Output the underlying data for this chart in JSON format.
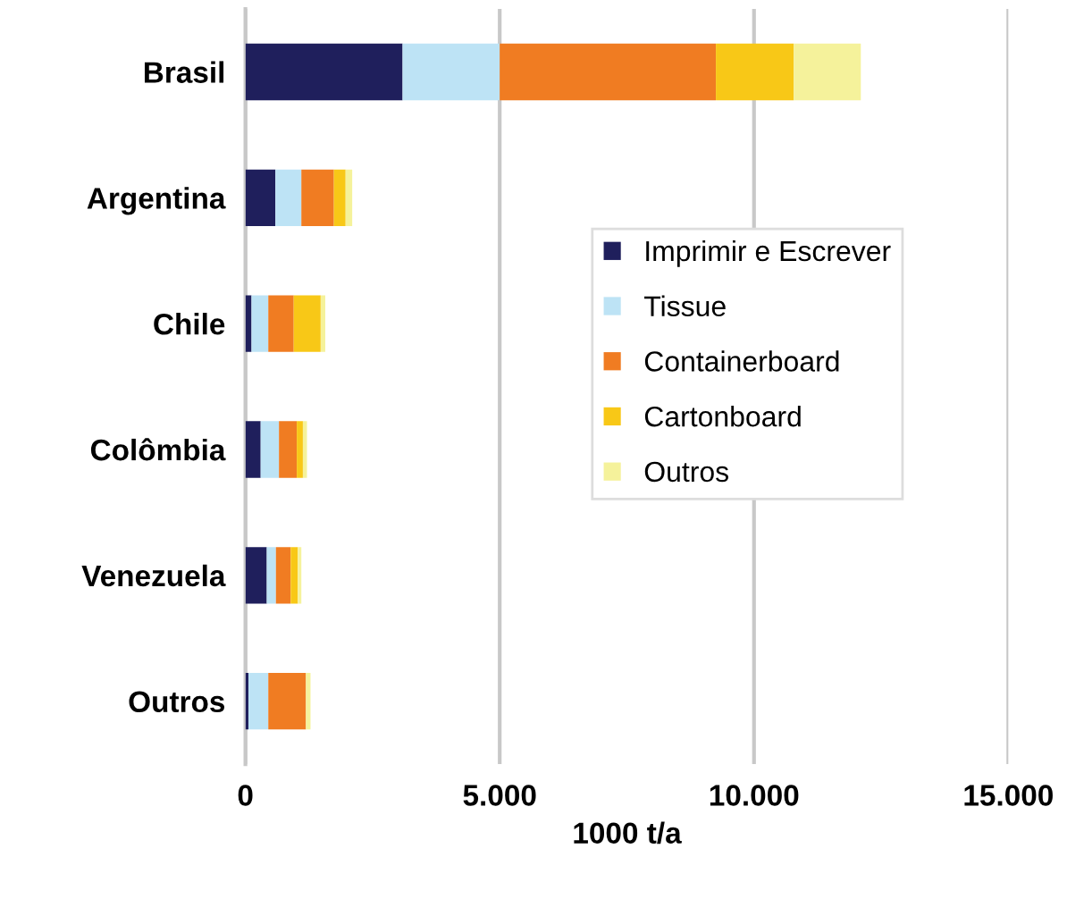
{
  "chart_data": {
    "type": "bar",
    "orientation": "horizontal",
    "stacked": true,
    "xlabel": "1000 t/a",
    "categories": [
      "Brasil",
      "Argentina",
      "Chile",
      "Colômbia",
      "Venezuela",
      "Outros"
    ],
    "series": [
      {
        "name": "Imprimir e Escrever",
        "color": "#1f1f5c",
        "values": [
          3090,
          590,
          120,
          300,
          420,
          60
        ]
      },
      {
        "name": "Tissue",
        "color": "#bde3f5",
        "values": [
          1910,
          510,
          330,
          360,
          180,
          390
        ]
      },
      {
        "name": "Containerboard",
        "color": "#f07c22",
        "values": [
          4250,
          640,
          500,
          350,
          290,
          740
        ]
      },
      {
        "name": "Cartonboard",
        "color": "#f8c817",
        "values": [
          1530,
          230,
          530,
          120,
          140,
          0
        ]
      },
      {
        "name": "Outros",
        "color": "#f5f29b",
        "values": [
          1320,
          130,
          90,
          80,
          70,
          90
        ]
      }
    ],
    "xlim": [
      0,
      15000
    ],
    "xticks": [
      {
        "value": 0,
        "label": "0"
      },
      {
        "value": 5000,
        "label": "5.000"
      },
      {
        "value": 10000,
        "label": "10.000"
      },
      {
        "value": 15000,
        "label": "15.000"
      }
    ],
    "grid": "x",
    "legend": "center right"
  }
}
